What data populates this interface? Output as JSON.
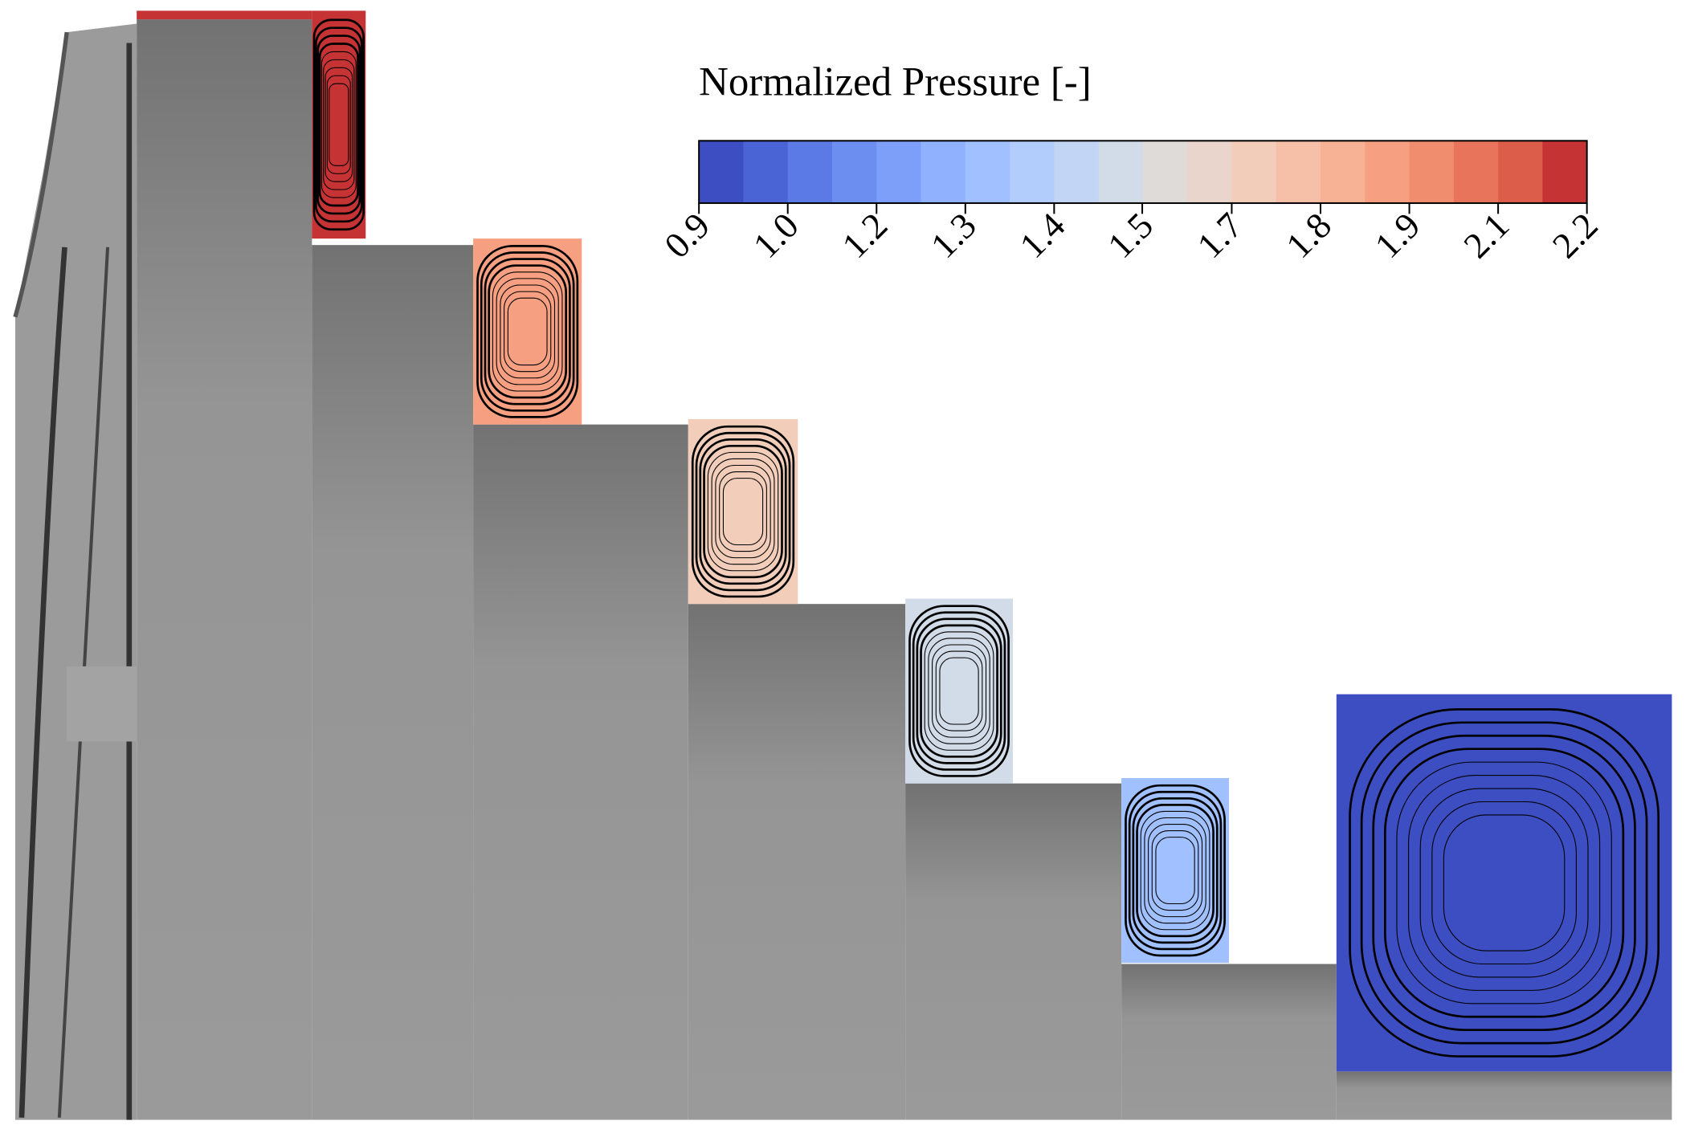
{
  "chart_data": {
    "type": "contour",
    "title": "Normalized Pressure [-]",
    "clim": [
      0.9,
      2.2
    ],
    "ticks": [
      0.9,
      {
        "value": 1.03,
        "label": "1.0"
      },
      {
        "value": 1.16,
        "label": "1.2"
      },
      {
        "value": 1.29,
        "label": "1.3"
      },
      {
        "value": 1.42,
        "label": "1.4"
      },
      {
        "value": 1.549,
        "label": "1.5"
      },
      {
        "value": 1.68,
        "label": "1.7"
      },
      {
        "value": 1.81,
        "label": "1.8"
      },
      {
        "value": 1.94,
        "label": "1.9"
      },
      {
        "value": 2.07,
        "label": "2.1"
      },
      2.2
    ],
    "colors": [
      "#3c4ec2",
      "#4b64d5",
      "#5b7ae5",
      "#6c8ef1",
      "#7d9ff9",
      "#8fb1fe",
      "#a1c0ff",
      "#b2ccfb",
      "#c3d5f4",
      "#d2dbe8",
      "#dfdbd9",
      "#e9d5cb",
      "#f1cdba",
      "#f5c0a7",
      "#f7b194",
      "#f6a081",
      "#f18d6f",
      "#e7745b",
      "#dc5d4a",
      "#c53334"
    ],
    "values": [
      2.15,
      1.9,
      1.72,
      1.5,
      1.3,
      0.95
    ]
  }
}
